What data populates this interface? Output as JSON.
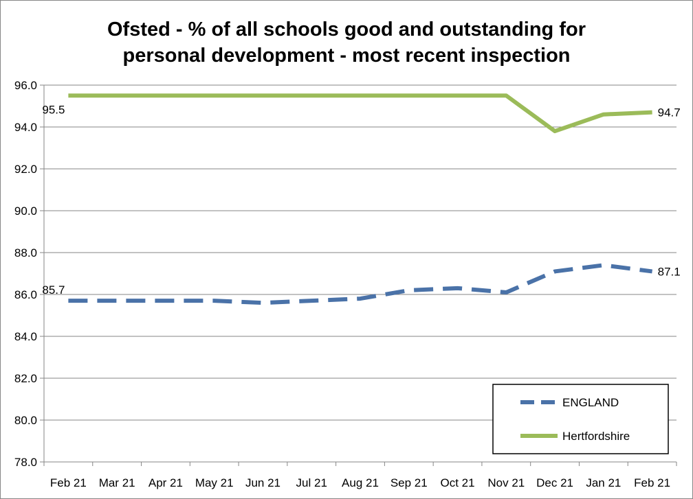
{
  "chart_data": {
    "type": "line",
    "title": [
      "Ofsted - % of all schools good and outstanding for",
      "personal development - most recent inspection"
    ],
    "xlabel": "",
    "ylabel": "",
    "categories": [
      "Feb 21",
      "Mar 21",
      "Apr 21",
      "May 21",
      "Jun 21",
      "Jul 21",
      "Aug 21",
      "Sep 21",
      "Oct 21",
      "Nov 21",
      "Dec 21",
      "Jan 21",
      "Feb 21"
    ],
    "ylim": [
      78.0,
      96.0
    ],
    "ytick_step": 2.0,
    "ytick_labels": [
      "78.0",
      "80.0",
      "82.0",
      "84.0",
      "86.0",
      "88.0",
      "90.0",
      "92.0",
      "94.0",
      "96.0"
    ],
    "grid": true,
    "legend_position": "bottom-right",
    "series": [
      {
        "name": "ENGLAND",
        "color": "#4a72a8",
        "style": "dashed",
        "values": [
          85.7,
          85.7,
          85.7,
          85.7,
          85.6,
          85.7,
          85.8,
          86.2,
          86.3,
          86.1,
          87.1,
          87.4,
          87.1
        ],
        "labels": [
          {
            "index": 0,
            "text": "85.7"
          },
          {
            "index": 12,
            "text": "87.1"
          }
        ]
      },
      {
        "name": "Hertfordshire",
        "color": "#9bbb59",
        "style": "solid",
        "values": [
          95.5,
          95.5,
          95.5,
          95.5,
          95.5,
          95.5,
          95.5,
          95.5,
          95.5,
          95.5,
          93.8,
          94.6,
          94.7
        ],
        "labels": [
          {
            "index": 0,
            "text": "95.5"
          },
          {
            "index": 12,
            "text": "94.7"
          }
        ]
      }
    ]
  }
}
